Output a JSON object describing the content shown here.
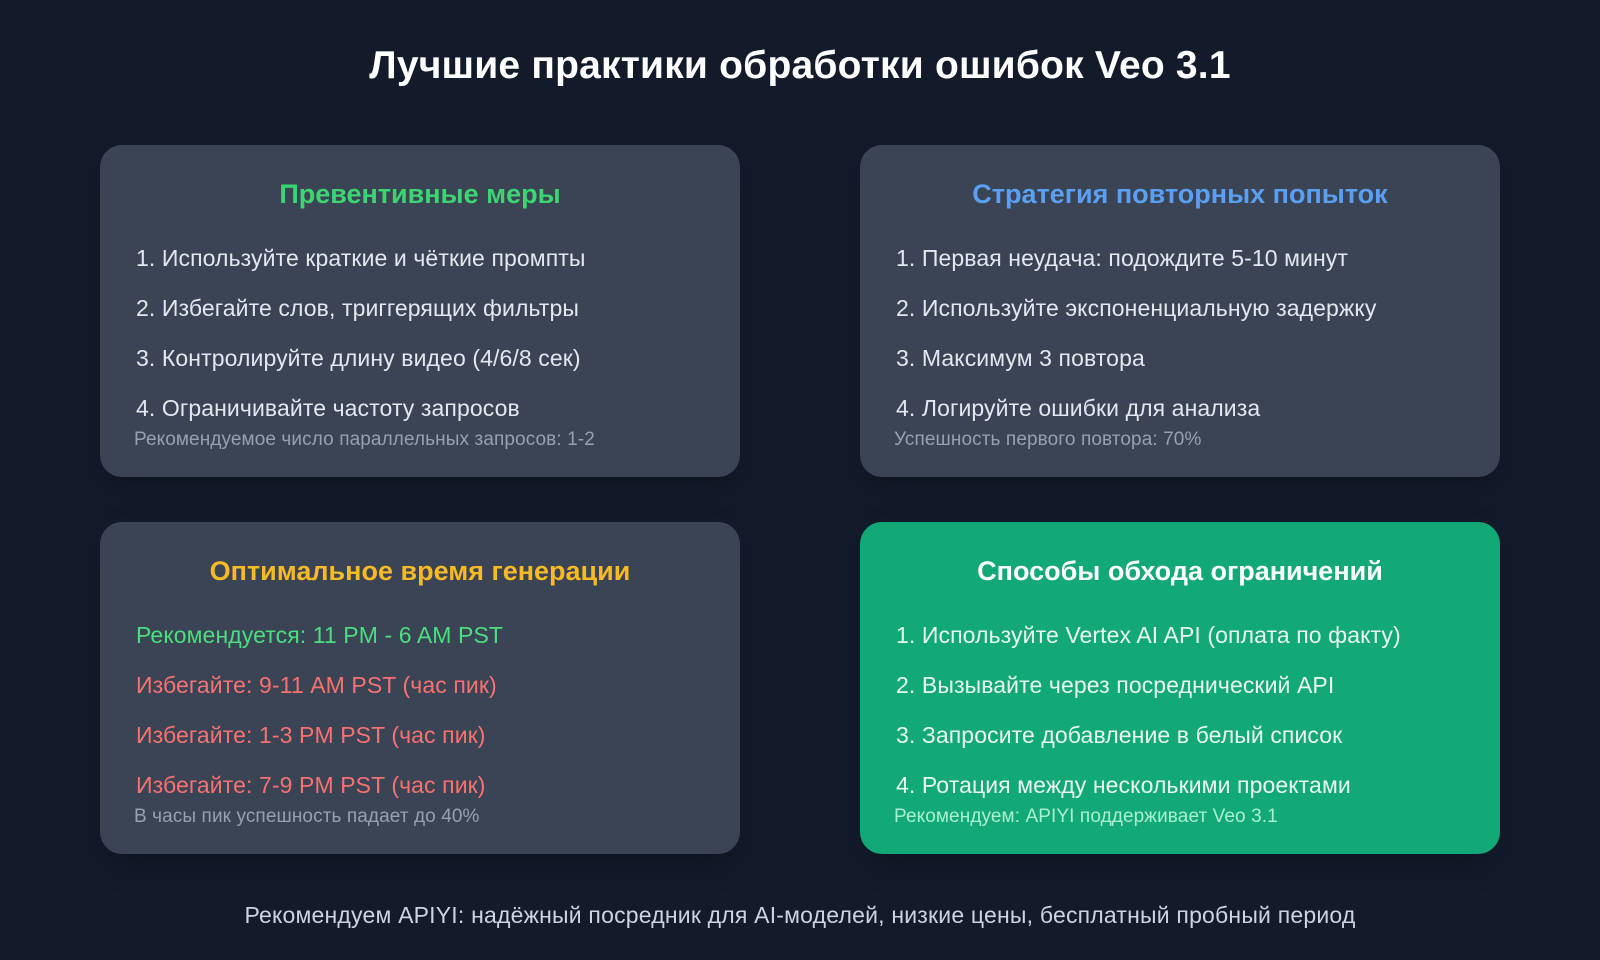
{
  "page": {
    "title": "Лучшие практики обработки ошибок Veo 3.1",
    "footer": "Рекомендуем APIYI: надёжный посредник для AI-моделей, низкие цены, бесплатный пробный период"
  },
  "colors": {
    "background": "#131b2b",
    "card_background": "#3a4454",
    "highlight_card_background": "#12a878",
    "main_title_color": "#ffffff",
    "footer_color": "#cbd5e1",
    "default_item_color": "#e2e8f0",
    "muted_note_color": "#94a1b2"
  },
  "cards": [
    {
      "title": "Превентивные меры",
      "title_color": "#3bd671",
      "background": "#3a4454",
      "items_color": "#e2e8f0",
      "note_color": "#94a1b2",
      "items": [
        {
          "text": "1. Используйте краткие и чёткие промпты"
        },
        {
          "text": "2. Избегайте слов, триггерящих фильтры"
        },
        {
          "text": "3. Контролируйте длину видео (4/6/8 сек)"
        },
        {
          "text": "4. Ограничивайте частоту запросов"
        }
      ],
      "note": "Рекомендуемое число параллельных запросов: 1-2"
    },
    {
      "title": "Стратегия повторных попыток",
      "title_color": "#5b9ff2",
      "background": "#3a4454",
      "items_color": "#e2e8f0",
      "note_color": "#94a1b2",
      "items": [
        {
          "text": "1. Первая неудача: подождите 5-10 минут"
        },
        {
          "text": "2. Используйте экспоненциальную задержку"
        },
        {
          "text": "3. Максимум 3 повтора"
        },
        {
          "text": "4. Логируйте ошибки для анализа"
        }
      ],
      "note": "Успешность первого повтора: 70%"
    },
    {
      "title": "Оптимальное время генерации",
      "title_color": "#f7ba25",
      "background": "#3a4454",
      "items_color": "#e2e8f0",
      "note_color": "#94a1b2",
      "items": [
        {
          "text": "Рекомендуется: 11 PM - 6 AM PST",
          "color": "#4ade80"
        },
        {
          "text": "Избегайте: 9-11 AM PST (час пик)",
          "color": "#f87171"
        },
        {
          "text": "Избегайте: 1-3 PM PST (час пик)",
          "color": "#f87171"
        },
        {
          "text": "Избегайте: 7-9 PM PST (час пик)",
          "color": "#f87171"
        }
      ],
      "note": "В часы пик успешность падает до 40%"
    },
    {
      "title": "Способы обхода ограничений",
      "title_color": "#ffffff",
      "background": "#12a878",
      "items_color": "#e9f8f1",
      "note_color": "#a9f0d1",
      "items": [
        {
          "text": "1. Используйте Vertex AI API (оплата по факту)"
        },
        {
          "text": "2. Вызывайте через посреднический API"
        },
        {
          "text": "3. Запросите добавление в белый список"
        },
        {
          "text": "4. Ротация между несколькими проектами"
        }
      ],
      "note": "Рекомендуем: APIYI поддерживает Veo 3.1"
    }
  ]
}
